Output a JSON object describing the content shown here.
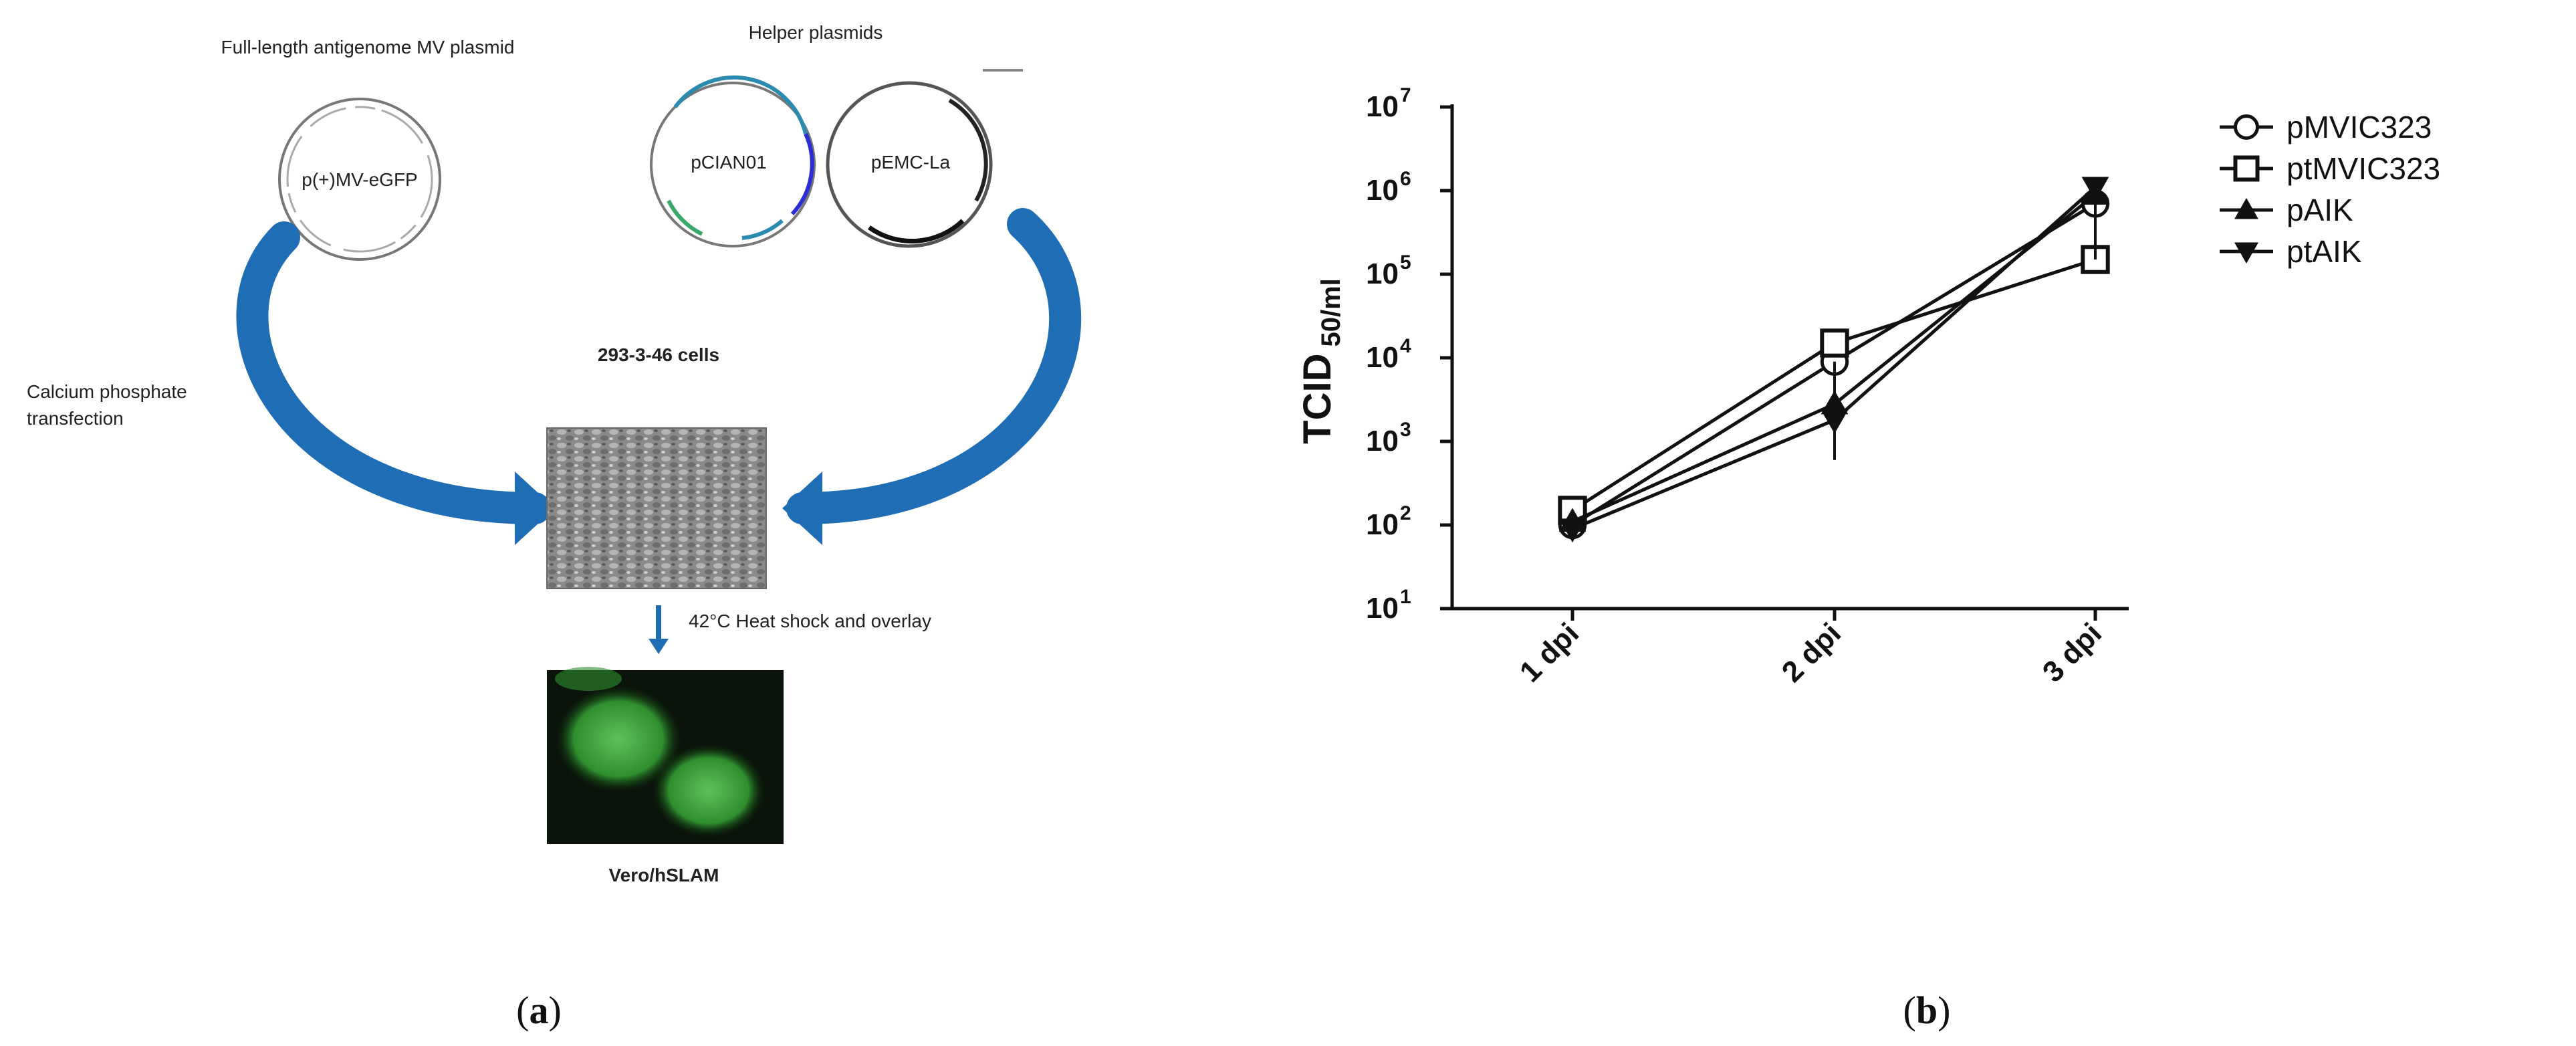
{
  "panel_a": {
    "plasmid_title": "Full-length antigenome MV plasmid",
    "helper_title": "Helper plasmids",
    "plasmid_main": "p(+)MV-eGFP",
    "helper_1": "pCIAN01",
    "helper_2": "pEMC-La",
    "cells_label": "293-3-46 cells",
    "transfection_line1": "Calcium phosphate",
    "transfection_line2": "transfection",
    "heat_shock": "42°C Heat shock and overlay",
    "vero_label": "Vero/hSLAM",
    "letter_open": "(",
    "letter": "a",
    "letter_close": ")",
    "colors": {
      "arrow_blue": "#1f6db5",
      "gfp_green": "#3fa63f"
    }
  },
  "panel_b": {
    "letter_open": "(",
    "letter": "b",
    "letter_close": ")",
    "y_label_main": "TCID",
    "y_label_sub": "50/ml",
    "y_ticks": [
      {
        "base": "10",
        "exp": "1",
        "value": 10
      },
      {
        "base": "10",
        "exp": "2",
        "value": 100
      },
      {
        "base": "10",
        "exp": "3",
        "value": 1000
      },
      {
        "base": "10",
        "exp": "4",
        "value": 10000
      },
      {
        "base": "10",
        "exp": "5",
        "value": 100000
      },
      {
        "base": "10",
        "exp": "6",
        "value": 1000000
      },
      {
        "base": "10",
        "exp": "7",
        "value": 10000000
      }
    ]
  },
  "chart_data": {
    "type": "line",
    "categories": [
      "1 dpi",
      "2 dpi",
      "3 dpi"
    ],
    "y_scale": "log",
    "ylim": [
      10,
      10000000
    ],
    "xlabel": "",
    "ylabel": "TCID 50/ml",
    "legend_position": "top-right",
    "grid": false,
    "series": [
      {
        "name": "pMVIC323",
        "marker": "circle-open",
        "values": [
          100,
          9000,
          700000
        ]
      },
      {
        "name": "ptMVIC323",
        "marker": "square-open",
        "values": [
          150,
          15000,
          150000
        ]
      },
      {
        "name": "pAIK",
        "marker": "triangle-up",
        "values": [
          110,
          2800,
          900000
        ]
      },
      {
        "name": "ptAIK",
        "marker": "triangle-down",
        "values": [
          90,
          1800,
          1100000
        ]
      }
    ]
  }
}
